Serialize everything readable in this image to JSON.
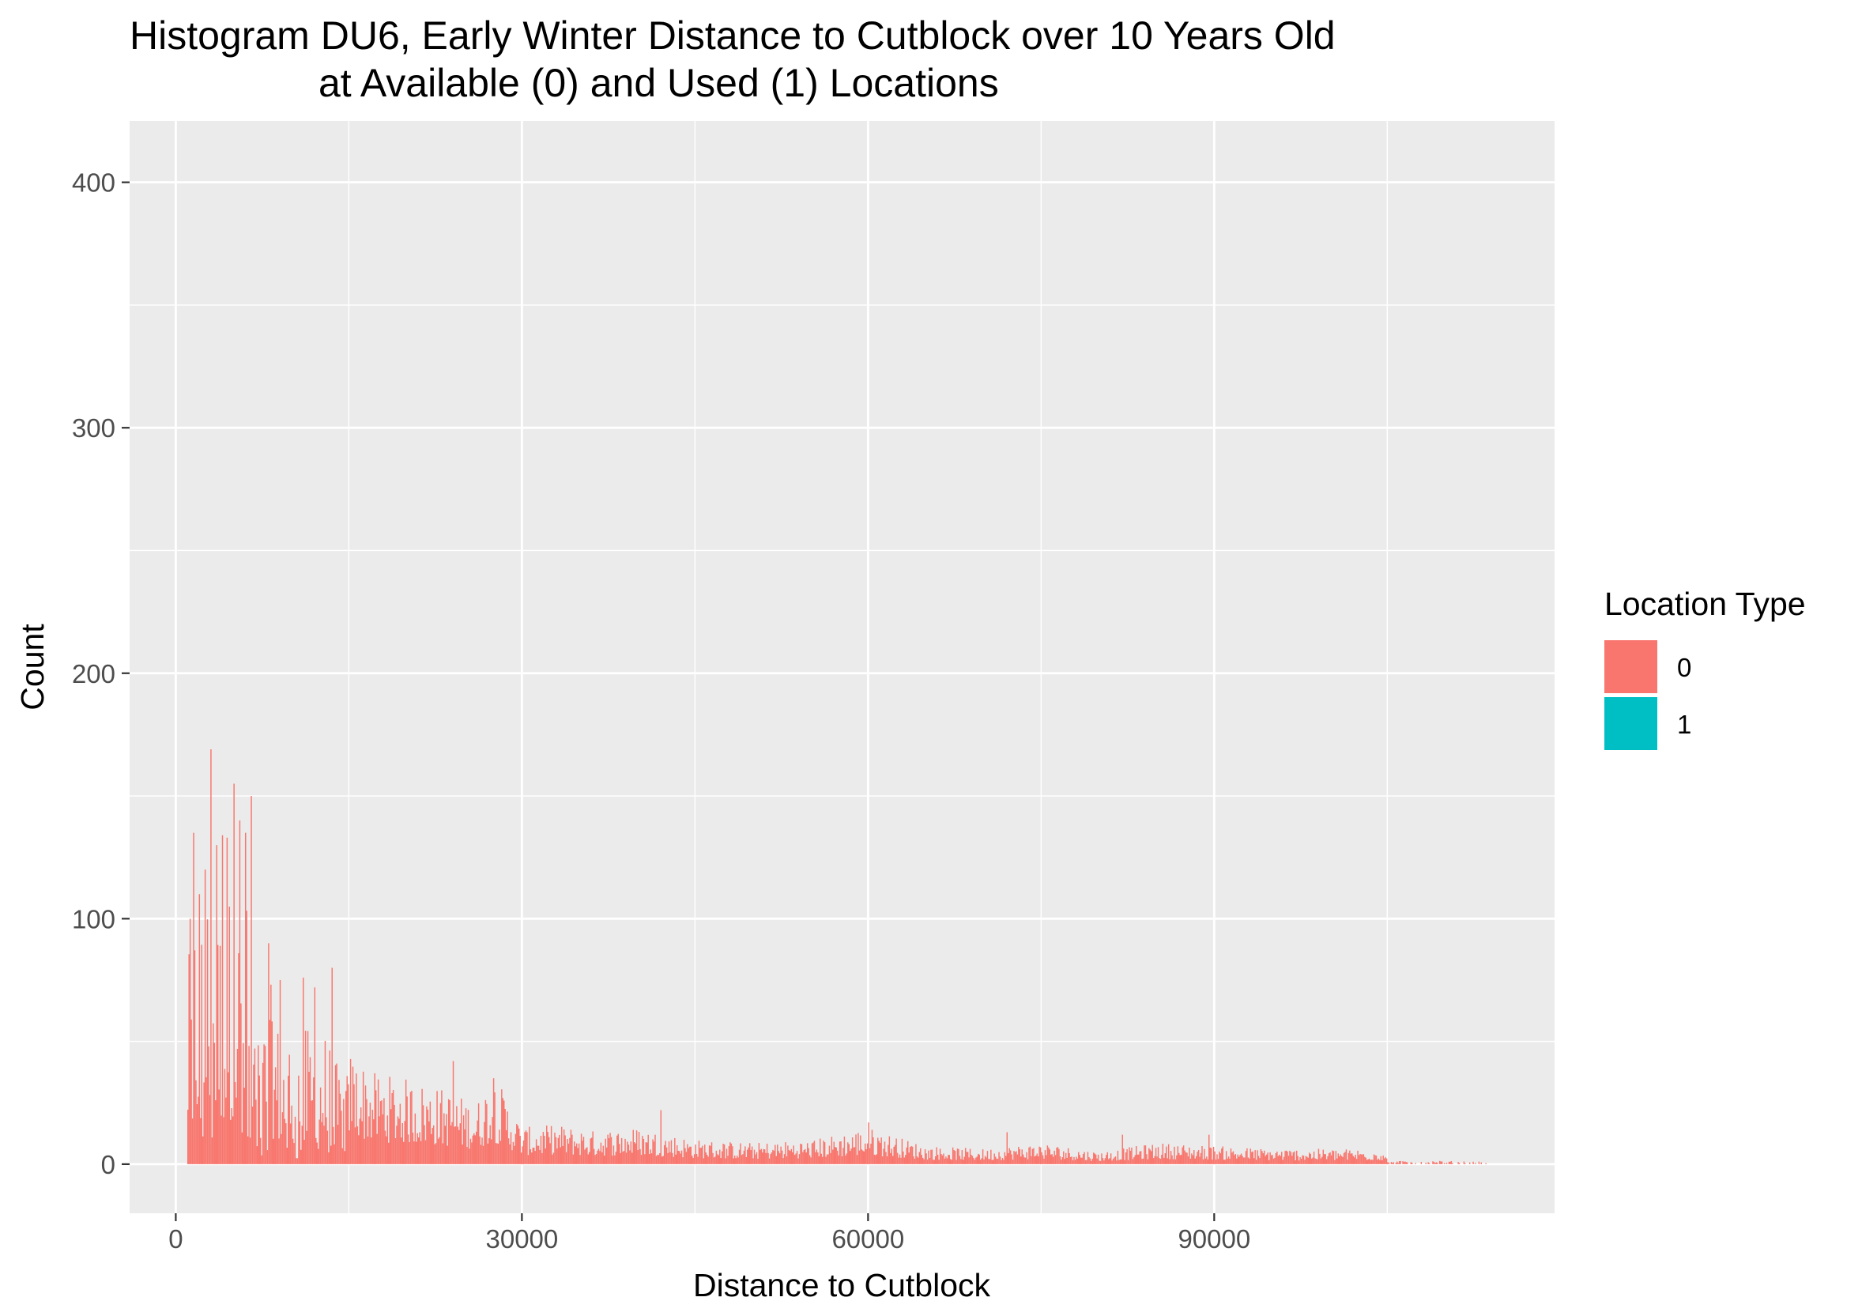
{
  "chart_data": {
    "type": "bar",
    "title": "Histogram DU6, Early Winter Distance to Cutblock over 10 Years Old",
    "subtitle": "at Available (0) and Used (1) Locations",
    "xlabel": "Distance to Cutblock",
    "ylabel": "Count",
    "xlim": [
      -4000,
      119500
    ],
    "ylim": [
      -20,
      425
    ],
    "x_ticks": [
      0,
      30000,
      60000,
      90000
    ],
    "y_ticks": [
      0,
      100,
      200,
      300,
      400
    ],
    "x_tick_labels": [
      "0",
      "30000",
      "60000",
      "90000"
    ],
    "y_tick_labels": [
      "0",
      "100",
      "200",
      "300",
      "400"
    ],
    "grid": true,
    "bin_width": 100,
    "legend": {
      "title": "Location Type",
      "position": "right",
      "entries": [
        {
          "label": "0",
          "color": "#F8766D"
        },
        {
          "label": "1",
          "color": "#00BFC4"
        }
      ]
    },
    "series": [
      {
        "name": "0",
        "color": "#F8766D",
        "envelope_x": [
          1000,
          1500,
          2000,
          2500,
          3000,
          3500,
          4000,
          4500,
          5000,
          5500,
          6000,
          6500,
          7000,
          7500,
          8000,
          9000,
          10000,
          11000,
          12000,
          13000,
          14000,
          15000,
          17000,
          20000,
          23000,
          26000,
          27500,
          30000,
          33000,
          36000,
          40000,
          45000,
          50000,
          55000,
          60000,
          65000,
          70000,
          75000,
          80000,
          85000,
          90000,
          95000,
          100000,
          104500,
          105000,
          110000,
          113500
        ],
        "envelope_y": [
          80,
          110,
          120,
          100,
          150,
          105,
          115,
          108,
          135,
          100,
          120,
          70,
          60,
          55,
          78,
          55,
          58,
          55,
          58,
          55,
          40,
          38,
          30,
          28,
          25,
          20,
          30,
          12,
          13,
          11,
          12,
          8,
          7,
          8,
          12,
          6,
          5,
          7,
          4,
          7,
          6,
          5,
          5,
          5,
          1.5,
          1.3,
          1
        ],
        "peaks": [
          [
            1200,
            100
          ],
          [
            1500,
            135
          ],
          [
            2000,
            110
          ],
          [
            2500,
            120
          ],
          [
            3000,
            169
          ],
          [
            3500,
            130
          ],
          [
            4000,
            134
          ],
          [
            4400,
            133
          ],
          [
            5000,
            155
          ],
          [
            5500,
            140
          ],
          [
            6000,
            135
          ],
          [
            6500,
            150
          ],
          [
            8000,
            90
          ],
          [
            9000,
            75
          ],
          [
            11000,
            76
          ],
          [
            12000,
            72
          ],
          [
            13500,
            80
          ],
          [
            24000,
            42
          ],
          [
            27500,
            35
          ],
          [
            42000,
            22
          ],
          [
            60000,
            17
          ],
          [
            72000,
            13
          ],
          [
            82000,
            12
          ],
          [
            89500,
            12
          ]
        ]
      },
      {
        "name": "1",
        "color": "#00BFC4",
        "envelope_x": [],
        "envelope_y": [],
        "peaks": []
      }
    ]
  }
}
